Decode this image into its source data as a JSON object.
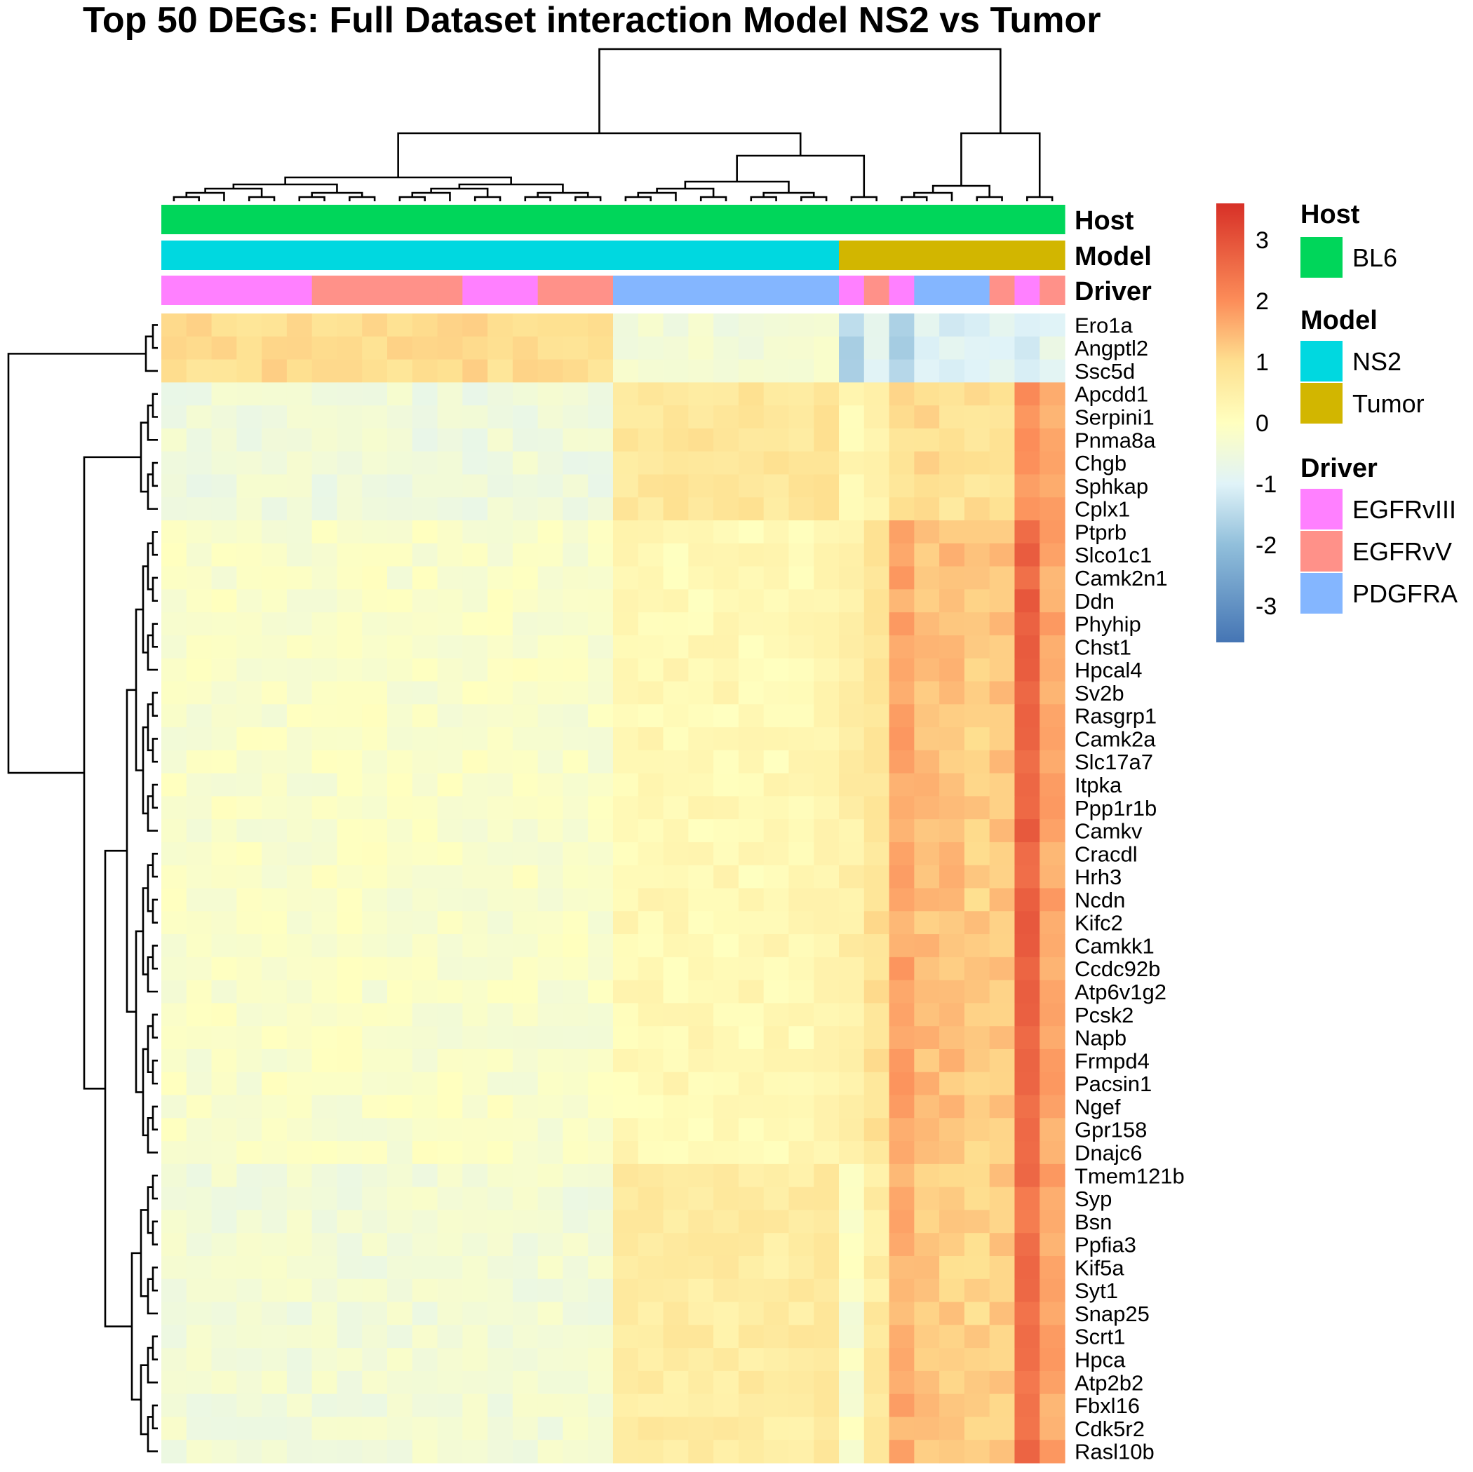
{
  "chart_data": {
    "type": "heatmap",
    "title": "Top 50 DEGs: Full Dataset interaction Model NS2 vs Tumor",
    "rows": [
      "Ero1a",
      "Angptl2",
      "Ssc5d",
      "Apcdd1",
      "Serpini1",
      "Pnma8a",
      "Chgb",
      "Sphkap",
      "Cplx1",
      "Ptprb",
      "Slco1c1",
      "Camk2n1",
      "Ddn",
      "Phyhip",
      "Chst1",
      "Hpcal4",
      "Sv2b",
      "Rasgrp1",
      "Camk2a",
      "Slc17a7",
      "Itpka",
      "Ppp1r1b",
      "Camkv",
      "Cracdl",
      "Hrh3",
      "Ncdn",
      "Kifc2",
      "Camkk1",
      "Ccdc92b",
      "Atp6v1g2",
      "Pcsk2",
      "Napb",
      "Frmpd4",
      "Pacsin1",
      "Ngef",
      "Gpr158",
      "Dnajc6",
      "Tmem121b",
      "Syp",
      "Bsn",
      "Ppfia3",
      "Kif5a",
      "Syt1",
      "Snap25",
      "Scrt1",
      "Hpca",
      "Atp2b2",
      "Fbxl16",
      "Cdk5r2",
      "Rasl10b"
    ],
    "n_columns": 36,
    "column_annotations": {
      "Host": [
        "BL6",
        "BL6",
        "BL6",
        "BL6",
        "BL6",
        "BL6",
        "BL6",
        "BL6",
        "BL6",
        "BL6",
        "BL6",
        "BL6",
        "BL6",
        "BL6",
        "BL6",
        "BL6",
        "BL6",
        "BL6",
        "BL6",
        "BL6",
        "BL6",
        "BL6",
        "BL6",
        "BL6",
        "BL6",
        "BL6",
        "BL6",
        "BL6",
        "BL6",
        "BL6",
        "BL6",
        "BL6",
        "BL6",
        "BL6",
        "BL6",
        "BL6"
      ],
      "Model": [
        "NS2",
        "NS2",
        "NS2",
        "NS2",
        "NS2",
        "NS2",
        "NS2",
        "NS2",
        "NS2",
        "NS2",
        "NS2",
        "NS2",
        "NS2",
        "NS2",
        "NS2",
        "NS2",
        "NS2",
        "NS2",
        "NS2",
        "NS2",
        "NS2",
        "NS2",
        "NS2",
        "NS2",
        "NS2",
        "NS2",
        "NS2",
        "Tumor",
        "Tumor",
        "Tumor",
        "Tumor",
        "Tumor",
        "Tumor",
        "Tumor",
        "Tumor",
        "Tumor"
      ],
      "Driver": [
        "EGFRvIII",
        "EGFRvIII",
        "EGFRvIII",
        "EGFRvIII",
        "EGFRvIII",
        "EGFRvIII",
        "EGFRvV",
        "EGFRvV",
        "EGFRvV",
        "EGFRvV",
        "EGFRvV",
        "EGFRvV",
        "EGFRvIII",
        "EGFRvIII",
        "EGFRvIII",
        "EGFRvV",
        "EGFRvV",
        "EGFRvV",
        "PDGFRA",
        "PDGFRA",
        "PDGFRA",
        "PDGFRA",
        "PDGFRA",
        "PDGFRA",
        "PDGFRA",
        "PDGFRA",
        "PDGFRA",
        "EGFRvIII",
        "EGFRvV",
        "EGFRvIII",
        "PDGFRA",
        "PDGFRA",
        "PDGFRA",
        "EGFRvV",
        "EGFRvIII",
        "EGFRvV"
      ]
    },
    "row_groups": [
      {
        "rows": [
          "Ero1a",
          "Angptl2",
          "Ssc5d"
        ],
        "ns2_egfr": 1.0,
        "ns2_pdgfra": -0.4,
        "tumor": [
          -1.5,
          -0.9,
          -1.6,
          -1.0,
          -1.0,
          -0.9,
          -0.8,
          -1.2,
          -0.8
        ]
      },
      {
        "rows": [
          "Apcdd1",
          "Serpini1",
          "Pnma8a",
          "Chgb",
          "Sphkap",
          "Cplx1"
        ],
        "ns2_egfr": -0.5,
        "ns2_pdgfra": 0.8,
        "tumor": [
          0.2,
          0.4,
          1.0,
          1.0,
          0.9,
          0.9,
          1.0,
          2.0,
          1.7
        ]
      },
      {
        "rows": [
          "Ptprb",
          "Slco1c1",
          "Camk2n1",
          "Ddn",
          "Phyhip",
          "Chst1",
          "Hpcal4",
          "Sv2b",
          "Rasgrp1",
          "Camk2a",
          "Slc17a7",
          "Itpka",
          "Ppp1r1b",
          "Camkv",
          "Cracdl",
          "Hrh3",
          "Ncdn",
          "Kifc2",
          "Camkk1",
          "Ccdc92b",
          "Atp6v1g2",
          "Pcsk2",
          "Napb",
          "Frmpd4",
          "Pacsin1",
          "Ngef",
          "Gpr158",
          "Dnajc6"
        ],
        "ns2_egfr": -0.2,
        "ns2_pdgfra": 0.2,
        "tumor": [
          0.5,
          0.9,
          1.7,
          1.4,
          1.4,
          1.2,
          1.3,
          2.7,
          1.7
        ]
      },
      {
        "rows": [
          "Tmem121b",
          "Syp",
          "Bsn",
          "Ppfia3",
          "Kif5a",
          "Syt1",
          "Snap25",
          "Scrt1",
          "Hpca",
          "Atp2b2",
          "Fbxl16",
          "Cdk5r2",
          "Rasl10b"
        ],
        "ns2_egfr": -0.4,
        "ns2_pdgfra": 0.6,
        "tumor": [
          -0.2,
          0.6,
          1.6,
          1.3,
          1.2,
          1.1,
          1.3,
          2.5,
          1.7
        ]
      }
    ],
    "color_scale": {
      "min": -3.6,
      "max": 3.6,
      "ticks": [
        "3",
        "2",
        "1",
        "0",
        "-1",
        "-2",
        "-3"
      ],
      "colors": [
        "#4575b4",
        "#91bfdb",
        "#e0f3f8",
        "#ffffbf",
        "#fee090",
        "#fc8d59",
        "#d73027"
      ]
    },
    "annotation_rows": [
      "Host",
      "Model",
      "Driver"
    ]
  },
  "legend": {
    "host": {
      "title": "Host",
      "items": [
        {
          "label": "BL6",
          "color": "#00d65a"
        }
      ]
    },
    "model": {
      "title": "Model",
      "items": [
        {
          "label": "NS2",
          "color": "#00d8e0"
        },
        {
          "label": "Tumor",
          "color": "#d2b600"
        }
      ]
    },
    "driver": {
      "title": "Driver",
      "items": [
        {
          "label": "EGFRvIII",
          "color": "#ff80ff"
        },
        {
          "label": "EGFRvV",
          "color": "#ff9189"
        },
        {
          "label": "PDGFRA",
          "color": "#84b6ff"
        }
      ]
    }
  }
}
